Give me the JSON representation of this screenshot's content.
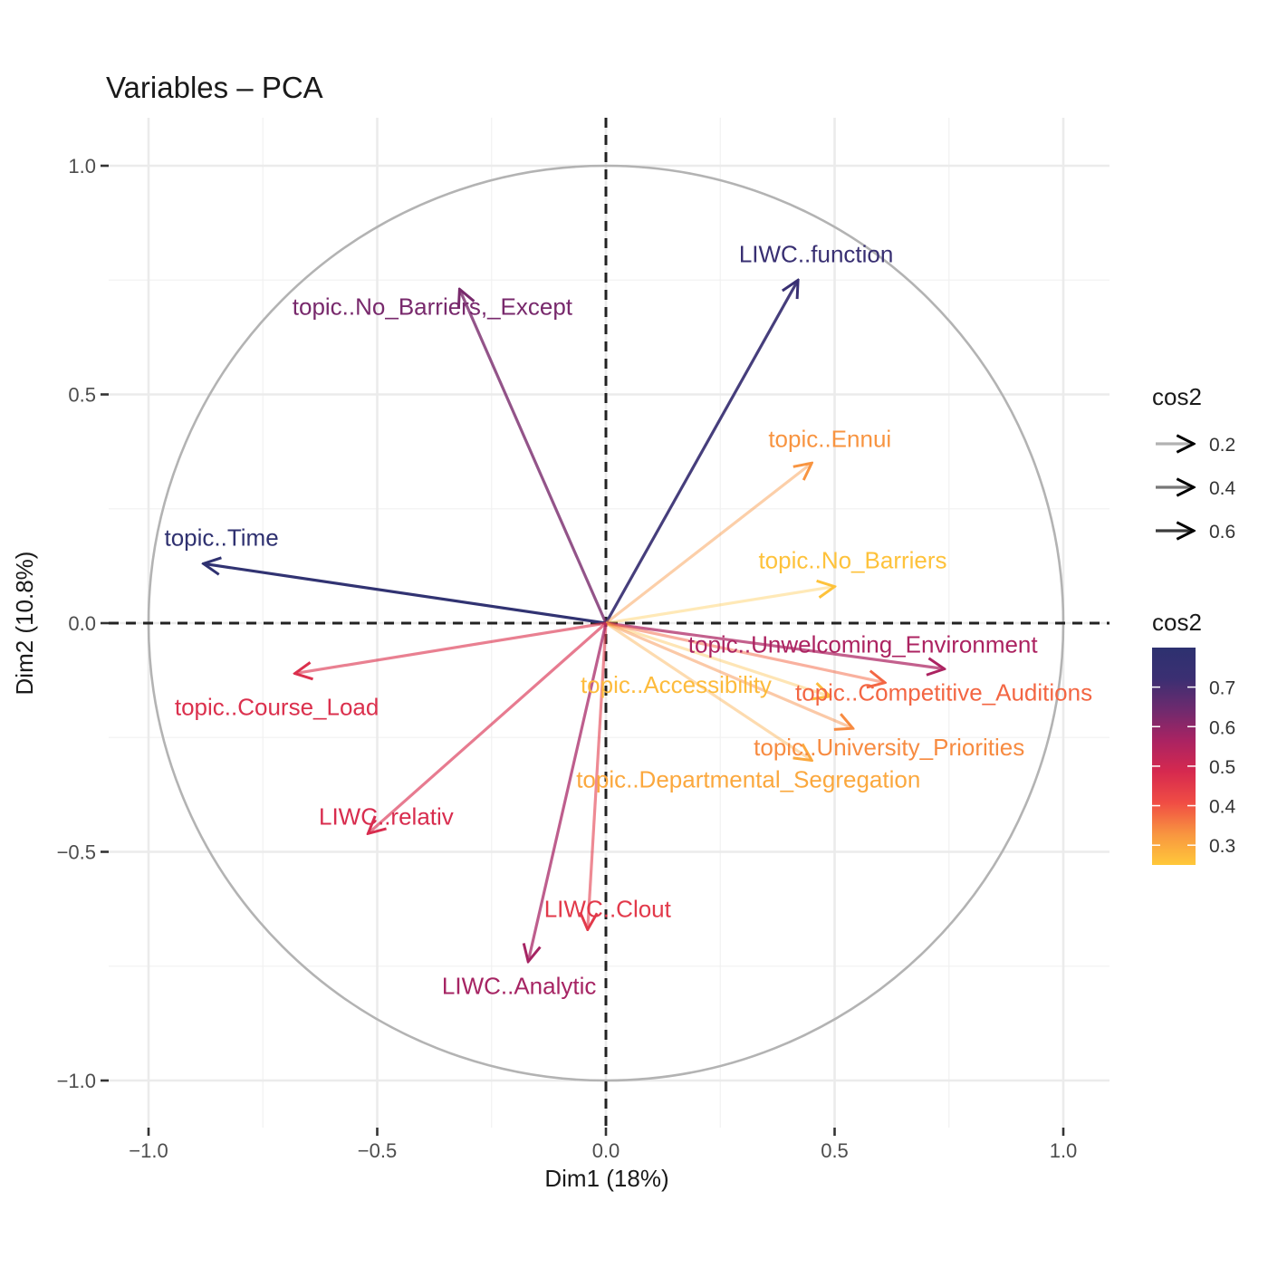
{
  "chart_data": {
    "type": "scatter",
    "subtype": "pca-variable-correlation-circle",
    "title": "Variables – PCA",
    "xlabel": "Dim1 (18%)",
    "ylabel": "Dim2 (10.8%)",
    "xlim": [
      -1.1,
      1.1
    ],
    "ylim": [
      -1.1,
      1.1
    ],
    "x_ticks": [
      -1.0,
      -0.5,
      0.0,
      0.5,
      1.0
    ],
    "x_tick_labels": [
      "−1.0",
      "−0.5",
      "0.0",
      "0.5",
      "1.0"
    ],
    "y_ticks": [
      1.0,
      0.5,
      0.0,
      -0.5,
      -1.0
    ],
    "y_tick_labels": [
      "1.0",
      "0.5",
      "0.0",
      "−0.5",
      "−1.0"
    ],
    "grid": true,
    "unit_circle": true,
    "reference_lines": {
      "x": 0,
      "y": 0,
      "style": "dashed"
    },
    "legend_placement": "right",
    "legend_alpha": {
      "title": "cos2",
      "entries": [
        {
          "label": "0.2",
          "value": 0.2
        },
        {
          "label": "0.4",
          "value": 0.4
        },
        {
          "label": "0.6",
          "value": 0.6
        }
      ]
    },
    "legend_color": {
      "title": "cos2",
      "labels": [
        "0.7",
        "0.6",
        "0.5",
        "0.4",
        "0.3"
      ],
      "values": [
        0.7,
        0.6,
        0.5,
        0.4,
        0.3
      ],
      "range": [
        0.25,
        0.8
      ],
      "colors_low_to_high": [
        "#FFC83A",
        "#F89540",
        "#F04D44",
        "#D6294F",
        "#AA2362",
        "#6E2A6E",
        "#3B2F72",
        "#2D3170"
      ]
    },
    "variables": [
      {
        "name": "topic..No_Barriers,_Except",
        "x": -0.32,
        "y": 0.73,
        "cos2": 0.63
      },
      {
        "name": "LIWC..function",
        "x": 0.42,
        "y": 0.75,
        "cos2": 0.74
      },
      {
        "name": "topic..Ennui",
        "x": 0.45,
        "y": 0.35,
        "cos2": 0.33
      },
      {
        "name": "topic..Time",
        "x": -0.88,
        "y": 0.13,
        "cos2": 0.79
      },
      {
        "name": "topic..No_Barriers",
        "x": 0.5,
        "y": 0.08,
        "cos2": 0.26
      },
      {
        "name": "topic..Unwelcoming_Environment",
        "x": 0.74,
        "y": -0.1,
        "cos2": 0.56
      },
      {
        "name": "topic..Course_Load",
        "x": -0.68,
        "y": -0.11,
        "cos2": 0.47
      },
      {
        "name": "topic..Accessibility",
        "x": 0.49,
        "y": -0.16,
        "cos2": 0.27
      },
      {
        "name": "topic..Competitive_Auditions",
        "x": 0.61,
        "y": -0.13,
        "cos2": 0.38
      },
      {
        "name": "topic..University_Priorities",
        "x": 0.54,
        "y": -0.23,
        "cos2": 0.34
      },
      {
        "name": "topic..Departmental_Segregation",
        "x": 0.45,
        "y": -0.3,
        "cos2": 0.3
      },
      {
        "name": "LIWC..relativ",
        "x": -0.52,
        "y": -0.46,
        "cos2": 0.48
      },
      {
        "name": "LIWC..Clout",
        "x": -0.04,
        "y": -0.67,
        "cos2": 0.45
      },
      {
        "name": "LIWC..Analytic",
        "x": -0.17,
        "y": -0.74,
        "cos2": 0.57
      }
    ]
  }
}
